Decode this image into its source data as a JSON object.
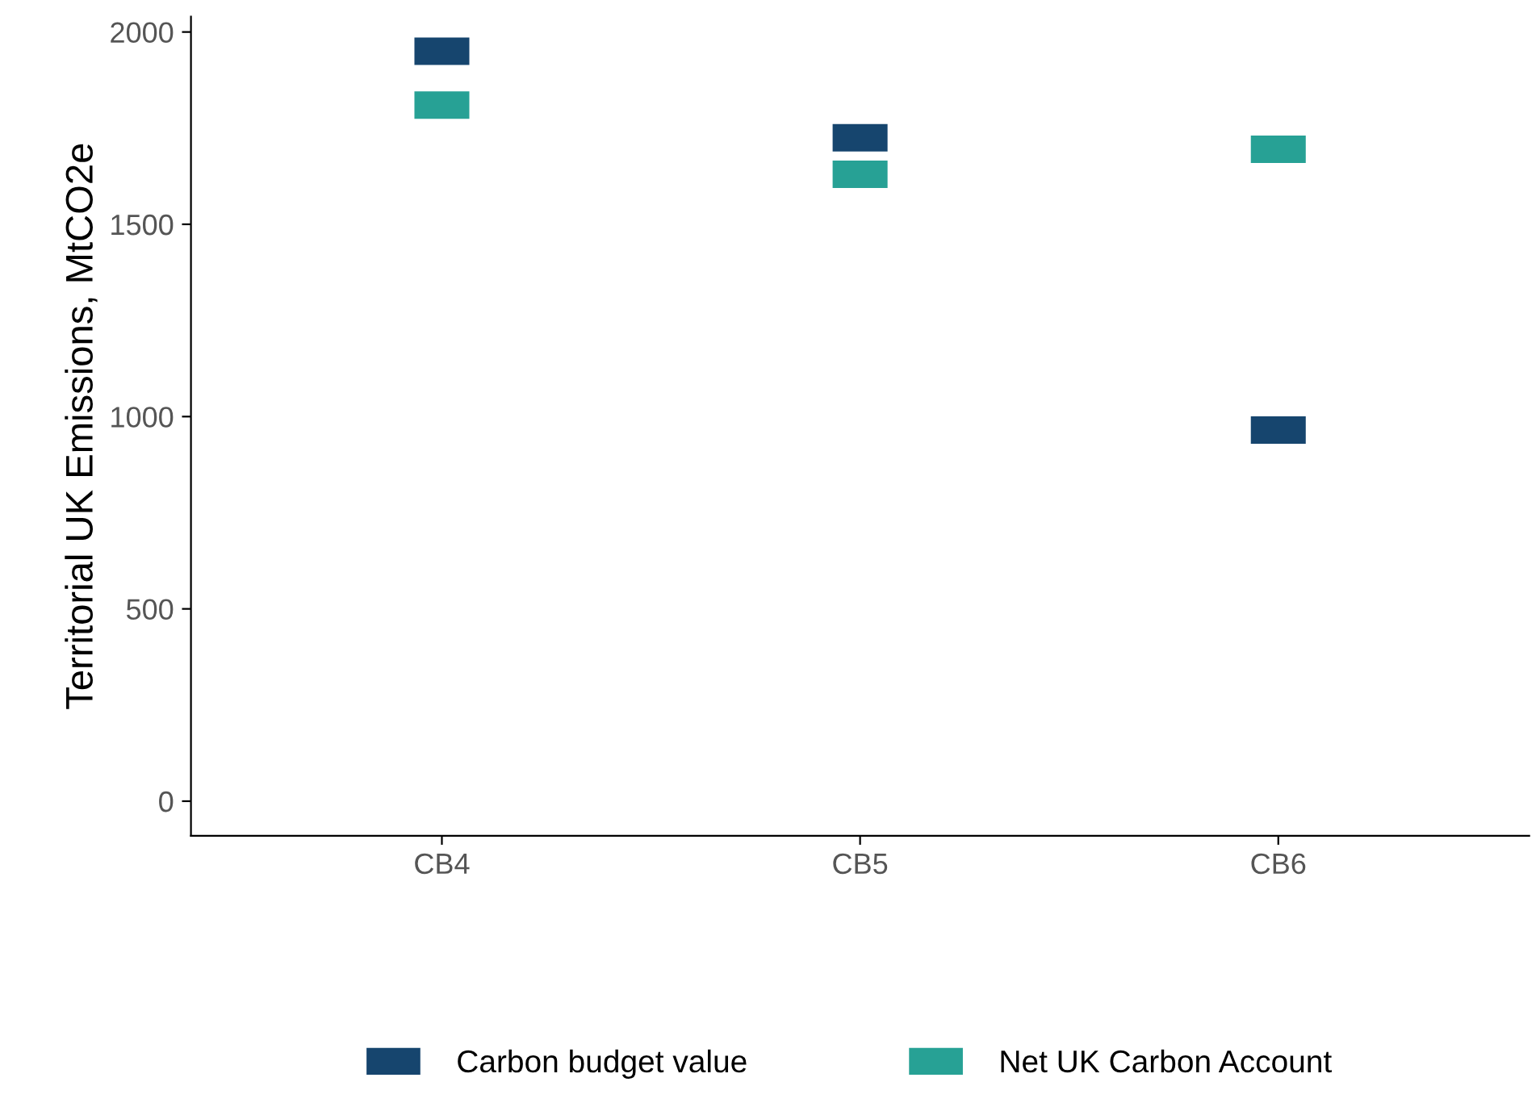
{
  "chart_data": {
    "type": "scatter",
    "ylabel": "Territorial UK Emissions, MtCO2e",
    "categories": [
      "CB4",
      "CB5",
      "CB6"
    ],
    "series": [
      {
        "name": "Carbon budget value",
        "color": "#16456e",
        "values": [
          1950,
          1725,
          965
        ]
      },
      {
        "name": "Net UK Carbon Account",
        "color": "#27a195",
        "values": [
          1810,
          1630,
          1695
        ]
      }
    ],
    "ylim": [
      -90,
      2040
    ],
    "yticks": [
      0,
      500,
      1000,
      1500,
      2000
    ],
    "grid": false,
    "legend": "bottom"
  }
}
